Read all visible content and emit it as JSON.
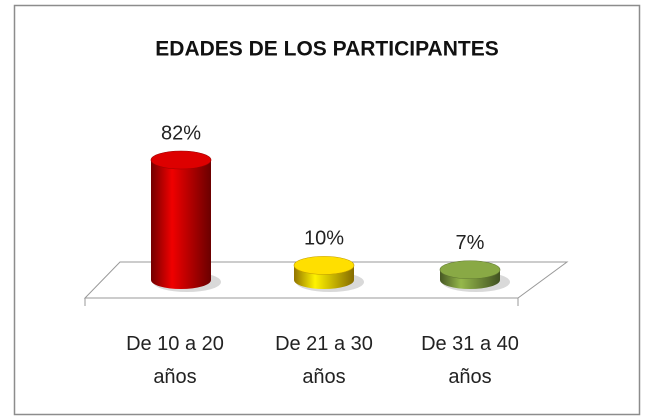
{
  "chart_data": {
    "type": "bar",
    "title": "EDADES DE LOS PARTICIPANTES",
    "categories": [
      "De 10 a 20 años",
      "De 21 a 30 años",
      "De 31 a 40 años"
    ],
    "values": [
      82,
      10,
      7
    ],
    "value_labels": [
      "82%",
      "10%",
      "7%"
    ],
    "colors": [
      "#c00000",
      "#f2c200",
      "#77933c"
    ]
  }
}
